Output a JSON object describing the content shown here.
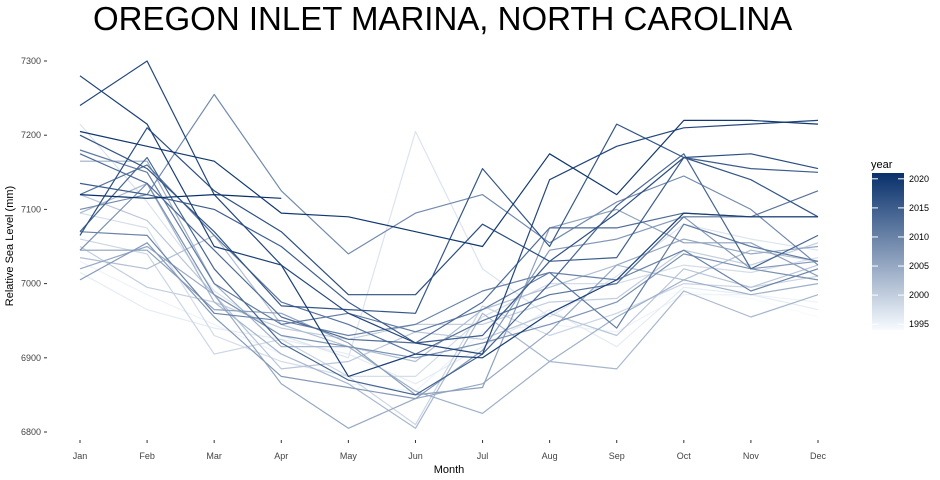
{
  "chart_data": {
    "type": "line",
    "title": "OREGON INLET MARINA, NORTH CAROLINA",
    "xlabel": "Month",
    "ylabel": "Relative Sea Level (mm)",
    "categories": [
      "Jan",
      "Feb",
      "Mar",
      "Apr",
      "May",
      "Jun",
      "Jul",
      "Aug",
      "Sep",
      "Oct",
      "Nov",
      "Dec"
    ],
    "ylim": [
      6785,
      7320
    ],
    "yticks": [
      6800,
      6900,
      7000,
      7100,
      7200,
      7300
    ],
    "grid": false,
    "legend": {
      "title": "year",
      "position": "right",
      "type": "continuous colorbar",
      "range": [
        1994,
        2021
      ],
      "ticks": [
        1995,
        2000,
        2005,
        2010,
        2015,
        2020
      ],
      "color_low": "#f7fbff",
      "color_high": "#08306b"
    },
    "series": [
      {
        "year": 1994,
        "values": [
          null,
          null,
          null,
          null,
          null,
          null,
          null,
          7000,
          6970,
          6990,
          6980,
          6955
        ]
      },
      {
        "year": 1995,
        "values": [
          7030,
          6985,
          6945,
          6905,
          6865,
          6855,
          6935,
          6945,
          6935,
          6985,
          6985,
          6975
        ]
      },
      {
        "year": 1996,
        "values": [
          7015,
          6965,
          6940,
          6925,
          6905,
          6865,
          6915,
          6965,
          6915,
          6995,
          6985,
          6965
        ]
      },
      {
        "year": 1997,
        "values": [
          7215,
          7110,
          6990,
          6930,
          6900,
          7205,
          7020,
          6955,
          7010,
          7080,
          7060,
          7045
        ]
      },
      {
        "year": 1998,
        "values": [
          7095,
          7075,
          6930,
          6895,
          6875,
          6875,
          6955,
          7000,
          7000,
          7025,
          7015,
          7035
        ]
      },
      {
        "year": 1999,
        "values": [
          7060,
          7040,
          6905,
          6925,
          6875,
          6810,
          6970,
          6930,
          6960,
          7000,
          6995,
          7010
        ]
      },
      {
        "year": 2000,
        "values": [
          7050,
          6995,
          6975,
          6940,
          6925,
          6945,
          6945,
          6975,
          6980,
          7045,
          7025,
          7055
        ]
      },
      {
        "year": 2001,
        "values": [
          7120,
          7085,
          6985,
          6885,
          6895,
          6935,
          6925,
          6960,
          6930,
          7020,
          6995,
          7025
        ]
      },
      {
        "year": 2002,
        "values": [
          7035,
          7020,
          7065,
          6945,
          6915,
          6895,
          6965,
          6995,
          7025,
          7005,
          7045,
          7030
        ]
      },
      {
        "year": 2003,
        "values": [
          7095,
          7135,
          6975,
          6905,
          6865,
          6805,
          6960,
          6895,
          6885,
          6990,
          6955,
          6985
        ]
      },
      {
        "year": 2004,
        "values": [
          7165,
          7165,
          7000,
          6915,
          6915,
          6855,
          6825,
          6895,
          6955,
          7005,
          6985,
          7000
        ]
      },
      {
        "year": 2005,
        "values": [
          7020,
          7050,
          6985,
          6865,
          6805,
          6845,
          6865,
          6935,
          7025,
          7060,
          7040,
          7050
        ]
      },
      {
        "year": 2006,
        "values": [
          7045,
          7045,
          6965,
          6960,
          6920,
          6850,
          6860,
          7075,
          7100,
          7055,
          7055,
          7010
        ]
      },
      {
        "year": 2007,
        "values": [
          7005,
          7055,
          6955,
          6875,
          6860,
          6845,
          6910,
          7045,
          7060,
          7090,
          7020,
          7030
        ]
      },
      {
        "year": 2008,
        "values": [
          7045,
          7135,
          6985,
          6930,
          6915,
          6900,
          6920,
          6945,
          6975,
          7040,
          7020,
          7005
        ]
      },
      {
        "year": 2009,
        "values": [
          7100,
          7120,
          7255,
          7125,
          7040,
          7095,
          7120,
          7055,
          7110,
          7145,
          7100,
          7025
        ]
      },
      {
        "year": 2010,
        "values": [
          7070,
          7065,
          6960,
          6950,
          6930,
          6945,
          6990,
          7015,
          7005,
          7045,
          6990,
          7020
        ]
      },
      {
        "year": 2011,
        "values": [
          7180,
          7150,
          7000,
          6945,
          6960,
          6935,
          6965,
          7015,
          6940,
          7080,
          7050,
          7030
        ]
      },
      {
        "year": 2012,
        "values": [
          7120,
          7160,
          7065,
          6975,
          6945,
          6905,
          6950,
          6985,
          7000,
          7090,
          7090,
          7125
        ]
      },
      {
        "year": 2013,
        "values": [
          7175,
          7135,
          7045,
          6955,
          6925,
          6920,
          6975,
          7075,
          7075,
          7095,
          7090,
          7090
        ]
      },
      {
        "year": 2014,
        "values": [
          7070,
          7170,
          7020,
          6920,
          6870,
          6850,
          6905,
          7000,
          7105,
          7175,
          7020,
          7065
        ]
      },
      {
        "year": 2015,
        "values": [
          7135,
          7120,
          7100,
          7050,
          6975,
          6920,
          6930,
          7030,
          7035,
          7170,
          7155,
          7150
        ]
      },
      {
        "year": 2016,
        "values": [
          7200,
          7155,
          7070,
          6970,
          6965,
          6960,
          7155,
          7050,
          7215,
          7170,
          7140,
          7090
        ]
      },
      {
        "year": 2017,
        "values": [
          7065,
          7210,
          7125,
          7070,
          6985,
          6985,
          7080,
          7030,
          7095,
          7170,
          7175,
          7155
        ]
      },
      {
        "year": 2018,
        "values": [
          7240,
          7300,
          7120,
          7025,
          6960,
          6920,
          6905,
          7140,
          7185,
          7210,
          7215,
          7220
        ]
      },
      {
        "year": 2019,
        "values": [
          7280,
          7215,
          7050,
          7025,
          6875,
          6905,
          6900,
          6960,
          7005,
          7095,
          7090,
          7090
        ]
      },
      {
        "year": 2020,
        "values": [
          7205,
          7185,
          7165,
          7095,
          7090,
          7070,
          7050,
          7175,
          7120,
          7220,
          7220,
          7215
        ]
      },
      {
        "year": 2021,
        "values": [
          7120,
          7115,
          7120,
          7115,
          null,
          null,
          null,
          null,
          null,
          null,
          null,
          null
        ]
      }
    ]
  }
}
